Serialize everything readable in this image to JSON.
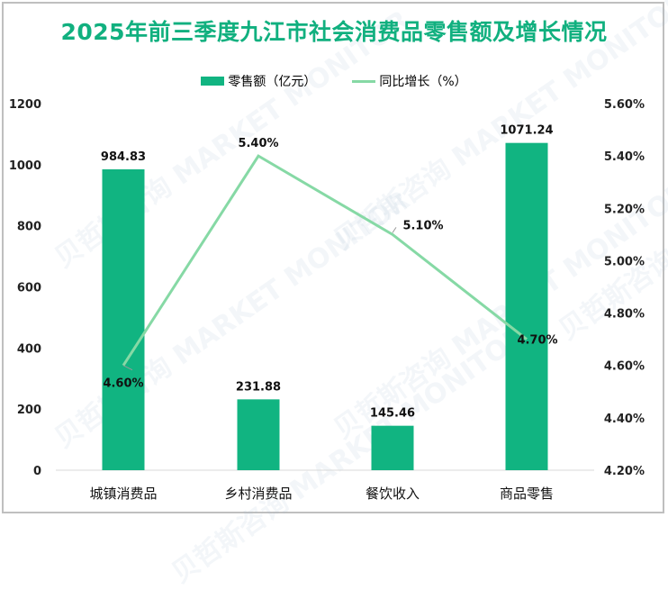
{
  "title": "2025年前三季度九江市社会消费品零售额及增长情况",
  "legend": {
    "bar_label": "零售额（亿元）",
    "line_label": "同比增长（%）"
  },
  "colors": {
    "title": "#11b07f",
    "bar": "#11b481",
    "line": "#86d9a5",
    "frame": "#bfbfbf"
  },
  "watermark": "贝哲斯咨询 MARKET MONITOR",
  "chart_data": {
    "type": "bar+line",
    "title": "2025年前三季度九江市社会消费品零售额及增长情况",
    "categories": [
      "城镇消费品",
      "乡村消费品",
      "餐饮收入",
      "商品零售"
    ],
    "series": [
      {
        "name": "零售额（亿元）",
        "type": "bar",
        "axis": "left",
        "values": [
          984.83,
          231.88,
          145.46,
          1071.24
        ],
        "labels": [
          "984.83",
          "231.88",
          "145.46",
          "1071.24"
        ]
      },
      {
        "name": "同比增长（%）",
        "type": "line",
        "axis": "right",
        "values": [
          4.6,
          5.4,
          5.1,
          4.7
        ],
        "labels": [
          "4.60%",
          "5.40%",
          "5.10%",
          "4.70%"
        ]
      }
    ],
    "left_axis": {
      "ylim": [
        0,
        1200
      ],
      "ticks": [
        "0",
        "200",
        "400",
        "600",
        "800",
        "1000",
        "1200"
      ]
    },
    "right_axis": {
      "ylim": [
        4.2,
        5.6
      ],
      "ticks": [
        "4.20%",
        "4.40%",
        "4.60%",
        "4.80%",
        "5.00%",
        "5.20%",
        "5.40%",
        "5.60%"
      ]
    },
    "grid": false,
    "legend_position": "top"
  }
}
